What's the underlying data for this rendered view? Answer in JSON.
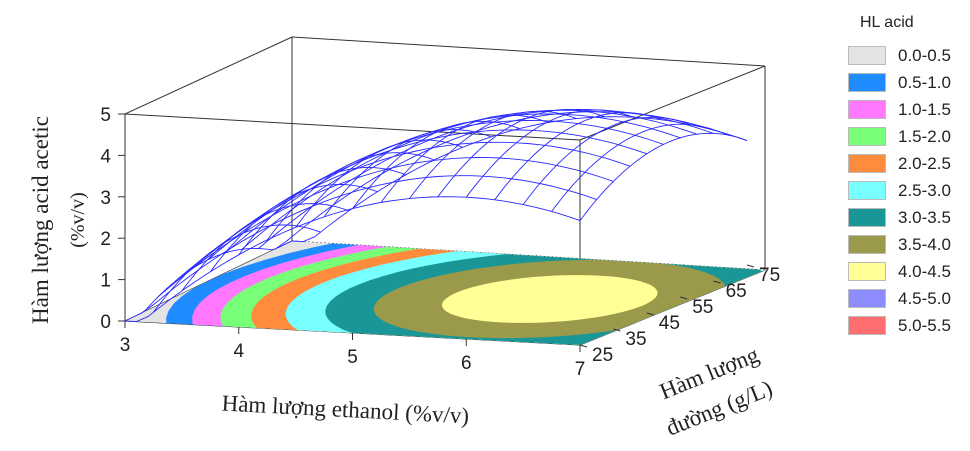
{
  "chart_data": {
    "type": "surface3d",
    "title": "",
    "zlabel_line1": "Hàm lượng  acid acetic",
    "zlabel_line2": "(%v/v)",
    "xlabel": "Hàm lượng ethanol (%v/v)",
    "ylabel_line1": "Hàm lượng",
    "ylabel_line2": "đường (g/L)",
    "x_ticks": [
      3,
      4,
      5,
      6,
      7
    ],
    "y_ticks": [
      25,
      35,
      45,
      55,
      65,
      75
    ],
    "z_ticks": [
      0,
      1,
      2,
      3,
      4,
      5
    ],
    "xlim": [
      3,
      7
    ],
    "ylim": [
      25,
      75
    ],
    "zlim": [
      0,
      5
    ],
    "surface_peak": {
      "x": 6.0,
      "y": 50,
      "z": 4.3
    },
    "contour_levels": [
      0.5,
      1.0,
      1.5,
      2.0,
      2.5,
      3.0,
      3.5,
      4.0
    ],
    "legend": {
      "title": "HL acid",
      "items": [
        {
          "label": "0.0-0.5",
          "color": "#e4e4e4"
        },
        {
          "label": "0.5-1.0",
          "color": "#1e8cff"
        },
        {
          "label": "1.0-1.5",
          "color": "#ff78ff"
        },
        {
          "label": "1.5-2.0",
          "color": "#78ff78"
        },
        {
          "label": "2.0-2.5",
          "color": "#ff8c3c"
        },
        {
          "label": "2.5-3.0",
          "color": "#78ffff"
        },
        {
          "label": "3.0-3.5",
          "color": "#1a9696"
        },
        {
          "label": "3.5-4.0",
          "color": "#9a9a4a"
        },
        {
          "label": "4.0-4.5",
          "color": "#ffff96"
        },
        {
          "label": "4.5-5.0",
          "color": "#8c8cff"
        },
        {
          "label": "5.0-5.5",
          "color": "#ff6e6e"
        }
      ]
    },
    "mesh_color": "#2a2aff"
  }
}
